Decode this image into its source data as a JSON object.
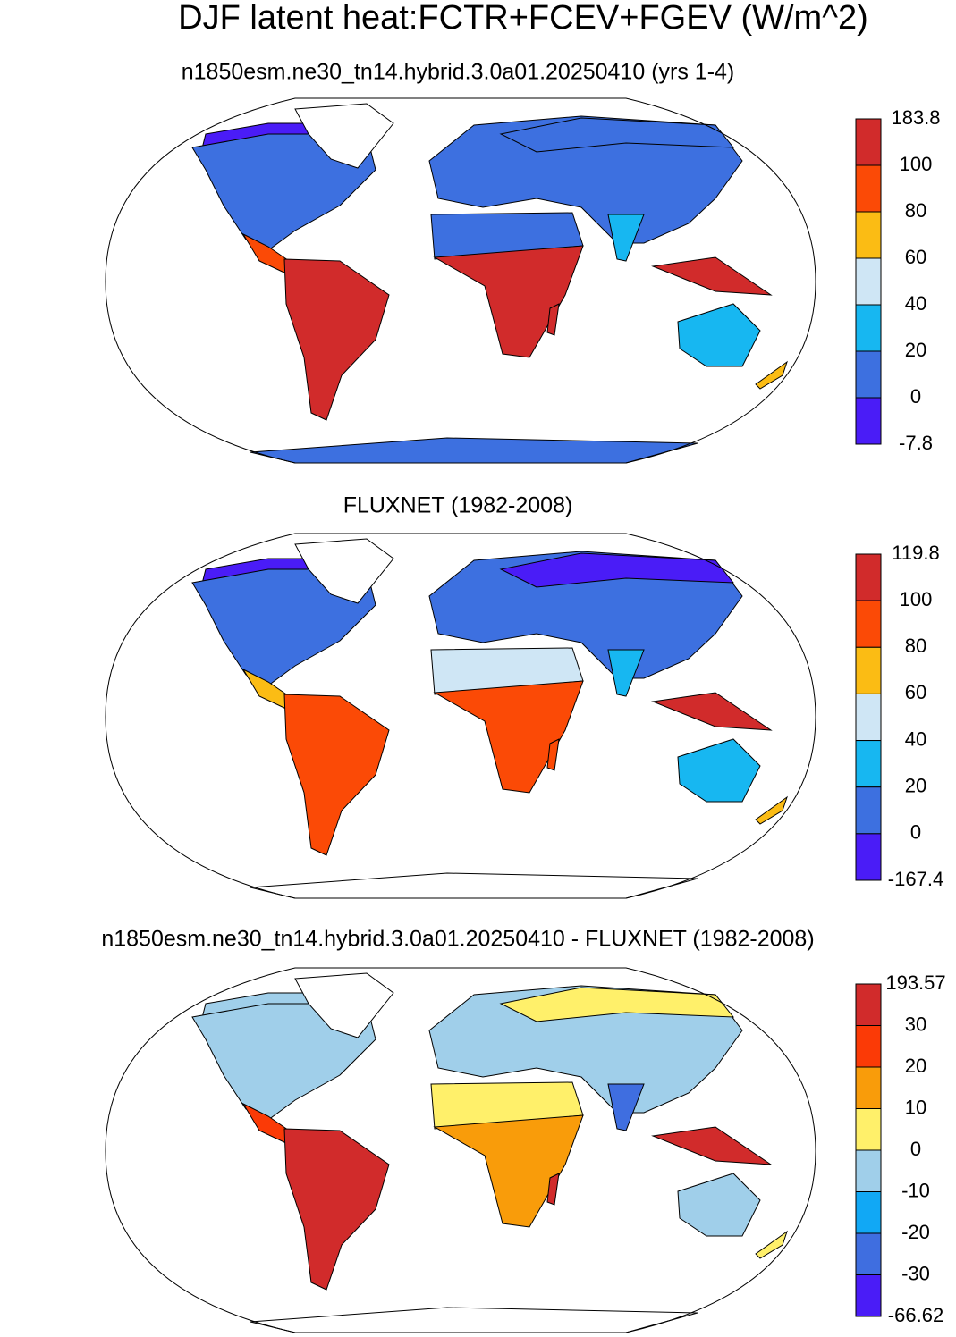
{
  "title": "DJF latent heat:FCTR+FCEV+FGEV (W/m^2)",
  "panels": [
    {
      "subtitle": "n1850esm.ne30_tn14.hybrid.3.0a01.20250410 (yrs 1-4)",
      "colorbar": {
        "labels": [
          183.8,
          100,
          80,
          60,
          40,
          20,
          0,
          -7.8
        ],
        "colors": [
          "#d12b2b",
          "#fb4a06",
          "#fbbc14",
          "#cfe6f5",
          "#17b7f1",
          "#3d70e0",
          "#4a1cf7"
        ]
      }
    },
    {
      "subtitle": "FLUXNET (1982-2008)",
      "colorbar": {
        "labels": [
          119.8,
          100,
          80,
          60,
          40,
          20,
          0,
          -167.4
        ],
        "colors": [
          "#d12b2b",
          "#fb4a06",
          "#fbbc14",
          "#cfe6f5",
          "#17b7f1",
          "#3d70e0",
          "#4a1cf7"
        ]
      }
    },
    {
      "subtitle": "n1850esm.ne30_tn14.hybrid.3.0a01.20250410 - FLUXNET (1982-2008)",
      "colorbar": {
        "labels": [
          193.57,
          30,
          20,
          10,
          0,
          -10,
          -20,
          -30,
          -66.62
        ],
        "colors": [
          "#d12b2b",
          "#fb3a06",
          "#f99c0a",
          "#fff06a",
          "#a0cfea",
          "#11a8f5",
          "#3f6ee0",
          "#4a1cf7"
        ]
      }
    }
  ]
}
